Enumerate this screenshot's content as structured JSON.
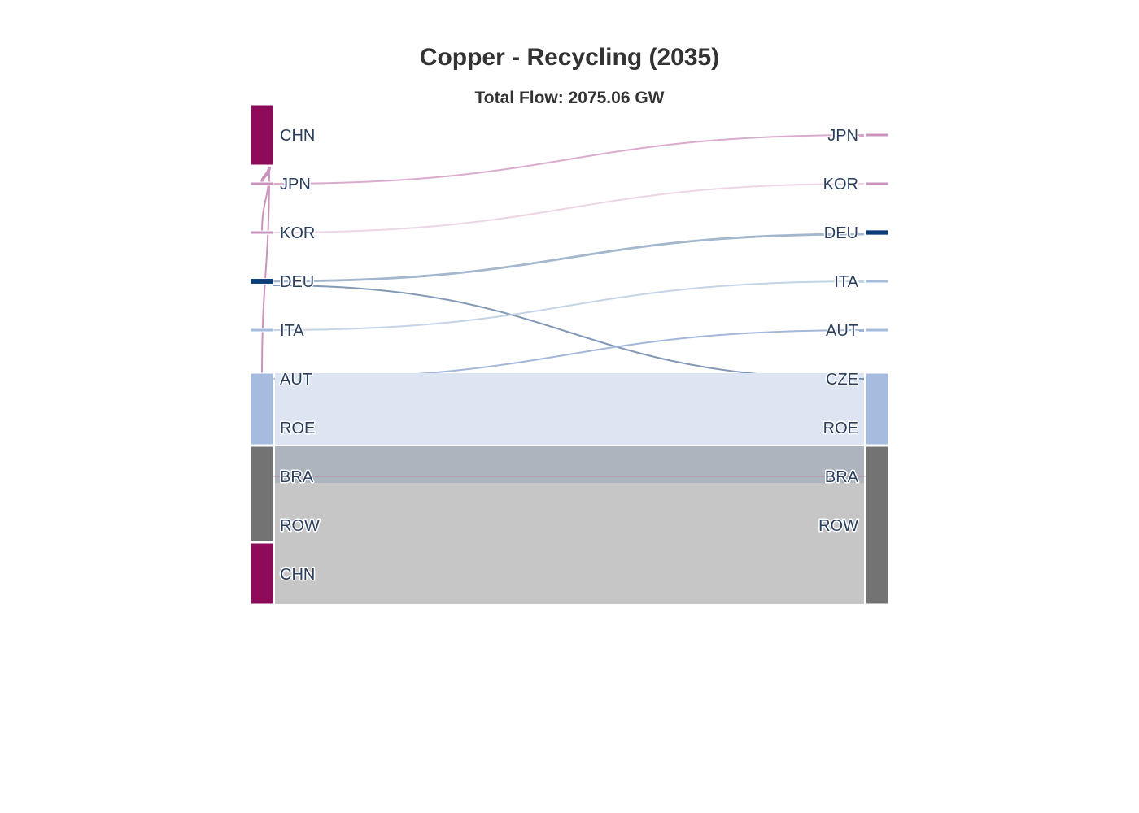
{
  "chart_data": {
    "type": "sankey",
    "title": "Copper - Recycling (2035)",
    "subtitle": "Total Flow: 2075.06 GW",
    "colors": {
      "CHN": "#8e0a5a",
      "ASIA_LIGHT": "#c994bd",
      "EU_DARK": "#0b3d78",
      "EU_LIGHT": "#a6bcdf",
      "ROW": "#737373",
      "BAND_ROE": "#dce5f1",
      "BAND_BRA": "#adb4bd",
      "BAND_ROW": "#c6c6c6"
    },
    "source_nodes": [
      {
        "id": "s_chn",
        "label": "CHN",
        "value": 420,
        "color": "#8e0a5a"
      },
      {
        "id": "s_jpn",
        "label": "JPN",
        "value": 2,
        "color": "#c994bd"
      },
      {
        "id": "s_kor",
        "label": "KOR",
        "value": 1,
        "color": "#c994bd"
      },
      {
        "id": "s_deu",
        "label": "DEU",
        "value": 23,
        "color": "#0b3d78"
      },
      {
        "id": "s_ita",
        "label": "ITA",
        "value": 1,
        "color": "#a6bcdf"
      },
      {
        "id": "s_aut",
        "label": "AUT",
        "value": 2,
        "color": "#a6bcdf"
      },
      {
        "id": "s_roe",
        "label": "ROE",
        "value": 506,
        "color": "#a6bcdf"
      },
      {
        "id": "s_bra",
        "label": "BRA",
        "value": 257,
        "color": "#737373"
      },
      {
        "id": "s_row",
        "label": "ROW",
        "value": 412,
        "color": "#737373"
      },
      {
        "id": "s_chn2",
        "label": "CHN",
        "value": 423,
        "color": "#8e0a5a"
      }
    ],
    "target_nodes": [
      {
        "id": "t_jpn",
        "label": "JPN",
        "value": 2,
        "color": "#c994bd"
      },
      {
        "id": "t_kor",
        "label": "KOR",
        "value": 1,
        "color": "#c994bd"
      },
      {
        "id": "t_deu",
        "label": "DEU",
        "value": 21,
        "color": "#0b3d78"
      },
      {
        "id": "t_ita",
        "label": "ITA",
        "value": 1,
        "color": "#a6bcdf"
      },
      {
        "id": "t_aut",
        "label": "AUT",
        "value": 2,
        "color": "#a6bcdf"
      },
      {
        "id": "t_cze",
        "label": "CZE",
        "value": 2,
        "color": "#a6bcdf"
      },
      {
        "id": "t_roe",
        "label": "ROE",
        "value": 506,
        "color": "#a6bcdf"
      },
      {
        "id": "t_bra",
        "label": "BRA",
        "value": 257,
        "color": "#737373"
      },
      {
        "id": "t_row",
        "label": "ROW",
        "value": 835,
        "color": "#737373"
      }
    ],
    "links": [
      {
        "source": "s_chn",
        "target": "s_jpn",
        "value": 2,
        "color": "#c994bd"
      },
      {
        "source": "s_chn",
        "target": "s_kor",
        "value": 1,
        "color": "#c994bd"
      },
      {
        "source": "s_chn",
        "target": "s_aut",
        "value": 1,
        "color": "#c994bd"
      },
      {
        "source": "s_jpn",
        "target": "t_jpn",
        "value": 2,
        "color": "#d9a6cc"
      },
      {
        "source": "s_kor",
        "target": "t_kor",
        "value": 1,
        "color": "#ecd3e4"
      },
      {
        "source": "s_deu",
        "target": "t_deu",
        "value": 21,
        "color": "#9fb3cc"
      },
      {
        "source": "s_deu",
        "target": "t_cze",
        "value": 2,
        "color": "#7c94b2"
      },
      {
        "source": "s_ita",
        "target": "t_ita",
        "value": 1,
        "color": "#c2d1e6"
      },
      {
        "source": "s_aut",
        "target": "t_aut",
        "value": 2,
        "color": "#9fb3d8"
      },
      {
        "source": "s_roe",
        "target": "t_roe",
        "value": 506,
        "color": "#dce5f1"
      },
      {
        "source": "s_bra",
        "target": "t_bra",
        "value": 257,
        "color": "#adb4bd"
      },
      {
        "source": "s_row",
        "target": "t_row",
        "value": 412,
        "color": "#c6c6c6"
      },
      {
        "source": "s_chn2",
        "target": "t_row",
        "value": 423,
        "color": "#c6c6c6"
      }
    ]
  }
}
